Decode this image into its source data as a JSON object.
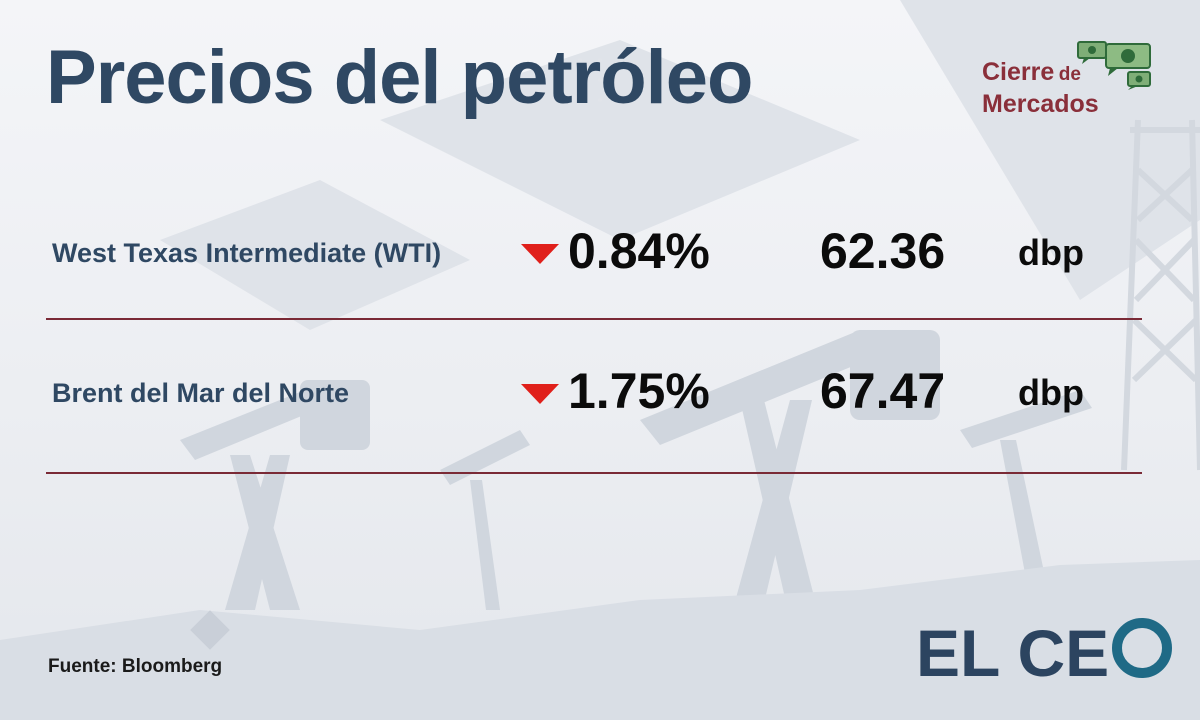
{
  "header": {
    "title": "Precios del petróleo",
    "badge_line1": "Cierre",
    "badge_line1_small": "de",
    "badge_line2": "Mercados",
    "badge_icon": "money-bills-icon"
  },
  "rows": [
    {
      "name": "West Texas Intermediate (WTI)",
      "direction": "down",
      "change": "0.84%",
      "price": "62.36",
      "unit": "dbp"
    },
    {
      "name": "Brent del Mar del Norte",
      "direction": "down",
      "change": "1.75%",
      "price": "67.47",
      "unit": "dbp"
    }
  ],
  "footer": {
    "source": "Fuente: Bloomberg",
    "logo_text": "EL CE"
  },
  "colors": {
    "title": "#2f4863",
    "brand": "#8a2f3a",
    "down_arrow": "#e0201b",
    "divider": "#7a2a36",
    "logo_ring": "#1f6a86"
  }
}
